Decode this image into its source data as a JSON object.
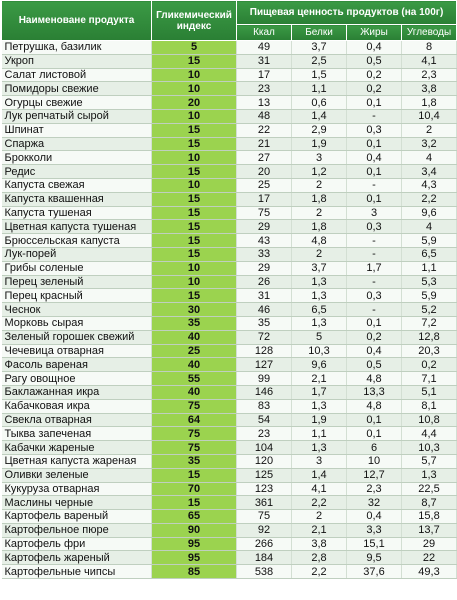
{
  "headers": {
    "product": "Наименоване продукта",
    "gi": "Гликемический индекс",
    "nutrition": "Пищевая ценность продуктов (на 100г)",
    "kcal": "Ккал",
    "protein": "Белки",
    "fat": "Жиры",
    "carbs": "Углеводы"
  },
  "colors": {
    "header": "#2f8a3a",
    "gi_column": "#9bd34f"
  },
  "rows": [
    [
      "Петрушка, базилик",
      "5",
      "49",
      "3,7",
      "0,4",
      "8"
    ],
    [
      "Укроп",
      "15",
      "31",
      "2,5",
      "0,5",
      "4,1"
    ],
    [
      "Салат листовой",
      "10",
      "17",
      "1,5",
      "0,2",
      "2,3"
    ],
    [
      "Помидоры свежие",
      "10",
      "23",
      "1,1",
      "0,2",
      "3,8"
    ],
    [
      "Огурцы свежие",
      "20",
      "13",
      "0,6",
      "0,1",
      "1,8"
    ],
    [
      "Лук репчатый сырой",
      "10",
      "48",
      "1,4",
      "-",
      "10,4"
    ],
    [
      "Шпинат",
      "15",
      "22",
      "2,9",
      "0,3",
      "2"
    ],
    [
      "Спаржа",
      "15",
      "21",
      "1,9",
      "0,1",
      "3,2"
    ],
    [
      "Брокколи",
      "10",
      "27",
      "3",
      "0,4",
      "4"
    ],
    [
      "Редис",
      "15",
      "20",
      "1,2",
      "0,1",
      "3,4"
    ],
    [
      "Капуста свежая",
      "10",
      "25",
      "2",
      "-",
      "4,3"
    ],
    [
      "Капуста квашенная",
      "15",
      "17",
      "1,8",
      "0,1",
      "2,2"
    ],
    [
      "Капуста тушеная",
      "15",
      "75",
      "2",
      "3",
      "9,6"
    ],
    [
      "Цветная капуста тушеная",
      "15",
      "29",
      "1,8",
      "0,3",
      "4"
    ],
    [
      "Брюссельская капуста",
      "15",
      "43",
      "4,8",
      "-",
      "5,9"
    ],
    [
      "Лук-порей",
      "15",
      "33",
      "2",
      "-",
      "6,5"
    ],
    [
      "Грибы соленые",
      "10",
      "29",
      "3,7",
      "1,7",
      "1,1"
    ],
    [
      "Перец зеленый",
      "10",
      "26",
      "1,3",
      "-",
      "5,3"
    ],
    [
      "Перец красный",
      "15",
      "31",
      "1,3",
      "0,3",
      "5,9"
    ],
    [
      "Чеснок",
      "30",
      "46",
      "6,5",
      "-",
      "5,2"
    ],
    [
      "Морковь сырая",
      "35",
      "35",
      "1,3",
      "0,1",
      "7,2"
    ],
    [
      "Зеленый горошек свежий",
      "40",
      "72",
      "5",
      "0,2",
      "12,8"
    ],
    [
      "Чечевица отварная",
      "25",
      "128",
      "10,3",
      "0,4",
      "20,3"
    ],
    [
      "Фасоль вареная",
      "40",
      "127",
      "9,6",
      "0,5",
      "0,2"
    ],
    [
      "Рагу овощное",
      "55",
      "99",
      "2,1",
      "4,8",
      "7,1"
    ],
    [
      "Баклажанная икра",
      "40",
      "146",
      "1,7",
      "13,3",
      "5,1"
    ],
    [
      "Кабачковая икра",
      "75",
      "83",
      "1,3",
      "4,8",
      "8,1"
    ],
    [
      "Свекла отварная",
      "64",
      "54",
      "1,9",
      "0,1",
      "10,8"
    ],
    [
      "Тыква запеченая",
      "75",
      "23",
      "1,1",
      "0,1",
      "4,4"
    ],
    [
      "Кабачки жареные",
      "75",
      "104",
      "1,3",
      "6",
      "10,3"
    ],
    [
      "Цветная капуста жареная",
      "35",
      "120",
      "3",
      "10",
      "5,7"
    ],
    [
      "Оливки зеленые",
      "15",
      "125",
      "1,4",
      "12,7",
      "1,3"
    ],
    [
      "Кукуруза отварная",
      "70",
      "123",
      "4,1",
      "2,3",
      "22,5"
    ],
    [
      "Маслины черные",
      "15",
      "361",
      "2,2",
      "32",
      "8,7"
    ],
    [
      "Картофель вареный",
      "65",
      "75",
      "2",
      "0,4",
      "15,8"
    ],
    [
      "Картофельное пюре",
      "90",
      "92",
      "2,1",
      "3,3",
      "13,7"
    ],
    [
      "Картофель фри",
      "95",
      "266",
      "3,8",
      "15,1",
      "29"
    ],
    [
      "Картофель жареный",
      "95",
      "184",
      "2,8",
      "9,5",
      "22"
    ],
    [
      "Картофельные чипсы",
      "85",
      "538",
      "2,2",
      "37,6",
      "49,3"
    ]
  ]
}
